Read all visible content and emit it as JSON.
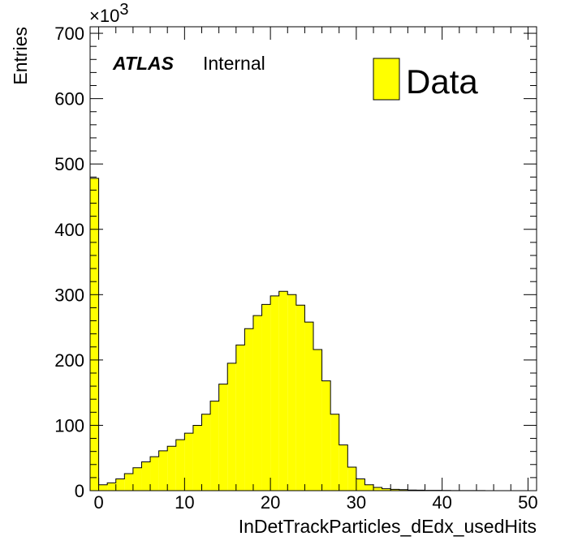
{
  "chart_data": {
    "type": "bar",
    "histogram": true,
    "xlabel": "InDetTrackParticles_dEdx_usedHits",
    "ylabel": "Entries",
    "y_multiplier_label": "×10",
    "y_multiplier_exponent": "3",
    "xlim": [
      -1,
      51
    ],
    "ylim": [
      0,
      710
    ],
    "bin_width": 1,
    "x_ticks": [
      0,
      10,
      20,
      30,
      40,
      50
    ],
    "y_ticks": [
      0,
      100,
      200,
      300,
      400,
      500,
      600,
      700
    ],
    "grid": false,
    "legend_position": "top-right",
    "series": [
      {
        "name": "Data",
        "color": "#ffff00",
        "bin_low_edges": [
          -1,
          0,
          1,
          2,
          3,
          4,
          5,
          6,
          7,
          8,
          9,
          10,
          11,
          12,
          13,
          14,
          15,
          16,
          17,
          18,
          19,
          20,
          21,
          22,
          23,
          24,
          25,
          26,
          27,
          28,
          29,
          30,
          31,
          32,
          33,
          34,
          35,
          36,
          37,
          38,
          39,
          40,
          41,
          42,
          43,
          44,
          45,
          46,
          47,
          48,
          49
        ],
        "values": [
          478,
          9,
          12,
          18,
          26,
          35,
          44,
          52,
          61,
          68,
          78,
          88,
          100,
          117,
          137,
          163,
          195,
          223,
          248,
          268,
          285,
          298,
          305,
          300,
          284,
          258,
          216,
          168,
          117,
          70,
          36,
          18,
          9,
          5,
          3,
          2,
          1.5,
          1,
          0.8,
          0.5,
          0.4,
          0.3,
          0.2,
          0.1,
          0.1,
          0.1,
          0,
          0,
          0,
          0,
          0
        ]
      }
    ]
  },
  "annotations": {
    "experiment": "ATLAS",
    "status": "Internal"
  }
}
